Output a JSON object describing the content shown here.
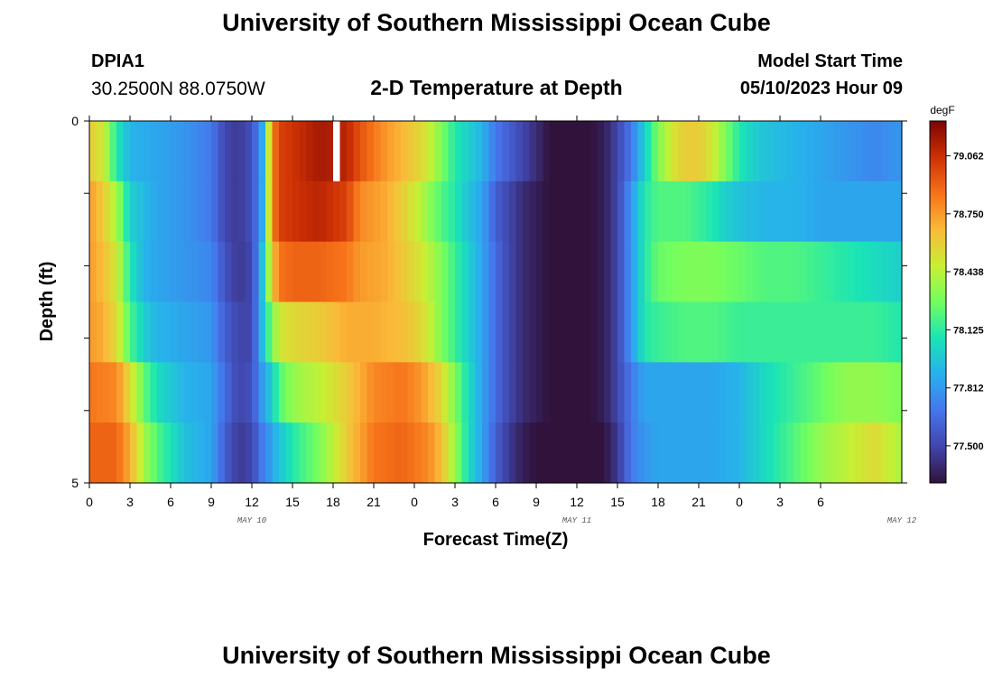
{
  "header": {
    "title": "University of Southern Mississippi Ocean Cube",
    "station_id": "DPIA1",
    "station_coords": "30.2500N  88.0750W",
    "subtitle": "2-D Temperature at Depth",
    "model_start_label": "Model Start Time",
    "model_start_value": "05/10/2023 Hour 09"
  },
  "footer": {
    "title": "University of Southern Mississippi Ocean Cube"
  },
  "chart_data": {
    "type": "heatmap",
    "title": "2-D Temperature at Depth",
    "xlabel": "Forecast Time(Z)",
    "ylabel": "Depth (ft)",
    "colorbar_unit": "degF",
    "x_tick_labels": [
      "0",
      "3",
      "6",
      "9",
      "12",
      "15",
      "18",
      "21",
      "0",
      "3",
      "6",
      "9",
      "12",
      "15",
      "18",
      "21",
      "0",
      "3",
      "6"
    ],
    "y_range": [
      0,
      5
    ],
    "y_tick_labels": [
      "0",
      "5"
    ],
    "date_labels": [
      {
        "label": "MAY 10",
        "hour_index": 12
      },
      {
        "label": "MAY 11",
        "hour_index": 36
      },
      {
        "label": "MAY 12",
        "hour_index": 60
      }
    ],
    "colorbar_ticks": [
      "79.062",
      "78.750",
      "78.438",
      "78.125",
      "77.812",
      "77.500"
    ],
    "color_range": [
      77.3,
      79.25
    ],
    "missing_cell": {
      "row": 0,
      "hour": 18
    },
    "depth_rows": [
      {
        "anchors": [
          [
            0,
            78.6
          ],
          [
            1,
            78.5
          ],
          [
            2,
            78.1
          ],
          [
            3,
            77.9
          ],
          [
            5,
            77.85
          ],
          [
            7,
            77.8
          ],
          [
            9,
            77.7
          ],
          [
            10,
            77.5
          ],
          [
            11,
            77.45
          ],
          [
            12,
            77.55
          ],
          [
            12.7,
            77.8
          ],
          [
            13.5,
            78.8
          ],
          [
            14,
            79.0
          ],
          [
            15,
            79.05
          ],
          [
            17,
            79.15
          ],
          [
            19,
            79.1
          ],
          [
            20,
            78.95
          ],
          [
            22,
            78.75
          ],
          [
            24,
            78.6
          ],
          [
            25,
            78.5
          ],
          [
            26,
            78.3
          ],
          [
            27,
            78.1
          ],
          [
            28,
            78.0
          ],
          [
            29,
            77.9
          ],
          [
            30,
            77.7
          ],
          [
            32,
            77.5
          ],
          [
            33,
            77.4
          ],
          [
            34,
            77.3
          ],
          [
            36,
            77.25
          ],
          [
            38,
            77.35
          ],
          [
            39,
            77.5
          ],
          [
            40,
            77.7
          ],
          [
            41,
            78.0
          ],
          [
            42,
            78.3
          ],
          [
            43,
            78.5
          ],
          [
            44,
            78.6
          ],
          [
            45,
            78.6
          ],
          [
            46,
            78.5
          ],
          [
            47,
            78.3
          ],
          [
            48,
            78.1
          ],
          [
            49,
            78.0
          ],
          [
            50,
            77.95
          ],
          [
            52,
            77.9
          ],
          [
            54,
            77.85
          ],
          [
            56,
            77.8
          ],
          [
            58,
            77.75
          ],
          [
            60,
            77.8
          ]
        ]
      },
      {
        "anchors": [
          [
            0,
            78.75
          ],
          [
            1,
            78.6
          ],
          [
            2,
            78.4
          ],
          [
            3,
            78.0
          ],
          [
            5,
            77.85
          ],
          [
            7,
            77.8
          ],
          [
            9,
            77.7
          ],
          [
            10,
            77.5
          ],
          [
            11,
            77.45
          ],
          [
            12,
            77.55
          ],
          [
            12.7,
            77.8
          ],
          [
            13.5,
            78.8
          ],
          [
            14,
            79.0
          ],
          [
            15,
            79.05
          ],
          [
            17,
            79.1
          ],
          [
            19,
            79.0
          ],
          [
            20,
            78.8
          ],
          [
            22,
            78.7
          ],
          [
            24,
            78.5
          ],
          [
            25,
            78.35
          ],
          [
            26,
            78.2
          ],
          [
            27,
            78.1
          ],
          [
            28,
            77.95
          ],
          [
            29,
            77.85
          ],
          [
            30,
            77.6
          ],
          [
            31,
            77.5
          ],
          [
            32,
            77.4
          ],
          [
            34,
            77.3
          ],
          [
            36,
            77.25
          ],
          [
            38,
            77.35
          ],
          [
            39,
            77.5
          ],
          [
            40,
            77.8
          ],
          [
            41,
            78.1
          ],
          [
            42,
            78.2
          ],
          [
            44,
            78.2
          ],
          [
            45,
            78.15
          ],
          [
            46,
            78.1
          ],
          [
            47,
            78.0
          ],
          [
            48,
            77.95
          ],
          [
            50,
            77.9
          ],
          [
            52,
            77.9
          ],
          [
            54,
            77.85
          ],
          [
            56,
            77.85
          ],
          [
            58,
            77.85
          ],
          [
            60,
            77.85
          ]
        ]
      },
      {
        "anchors": [
          [
            0,
            78.75
          ],
          [
            1,
            78.65
          ],
          [
            2,
            78.5
          ],
          [
            3,
            78.1
          ],
          [
            4,
            77.9
          ],
          [
            5,
            77.85
          ],
          [
            7,
            77.8
          ],
          [
            9,
            77.75
          ],
          [
            10,
            77.55
          ],
          [
            11,
            77.45
          ],
          [
            12,
            77.5
          ],
          [
            12.7,
            77.9
          ],
          [
            13.5,
            78.6
          ],
          [
            14,
            78.85
          ],
          [
            15,
            78.9
          ],
          [
            17,
            78.9
          ],
          [
            19,
            78.85
          ],
          [
            20,
            78.75
          ],
          [
            22,
            78.7
          ],
          [
            24,
            78.55
          ],
          [
            25,
            78.45
          ],
          [
            26,
            78.3
          ],
          [
            27,
            78.15
          ],
          [
            28,
            78.0
          ],
          [
            29,
            77.85
          ],
          [
            30,
            77.65
          ],
          [
            31,
            77.5
          ],
          [
            32,
            77.4
          ],
          [
            34,
            77.3
          ],
          [
            36,
            77.25
          ],
          [
            38,
            77.35
          ],
          [
            39,
            77.5
          ],
          [
            40,
            77.8
          ],
          [
            41,
            78.1
          ],
          [
            42,
            78.25
          ],
          [
            44,
            78.3
          ],
          [
            46,
            78.3
          ],
          [
            48,
            78.25
          ],
          [
            50,
            78.2
          ],
          [
            52,
            78.2
          ],
          [
            54,
            78.15
          ],
          [
            56,
            78.1
          ],
          [
            58,
            78.05
          ],
          [
            60,
            78.0
          ]
        ]
      },
      {
        "anchors": [
          [
            0,
            78.75
          ],
          [
            1,
            78.7
          ],
          [
            2,
            78.55
          ],
          [
            3,
            78.2
          ],
          [
            4,
            78.0
          ],
          [
            5,
            77.9
          ],
          [
            7,
            77.85
          ],
          [
            9,
            77.8
          ],
          [
            10,
            77.6
          ],
          [
            11,
            77.5
          ],
          [
            12,
            77.5
          ],
          [
            12.7,
            77.9
          ],
          [
            13.5,
            78.3
          ],
          [
            14,
            78.5
          ],
          [
            15,
            78.55
          ],
          [
            17,
            78.6
          ],
          [
            19,
            78.7
          ],
          [
            21,
            78.7
          ],
          [
            23,
            78.65
          ],
          [
            24,
            78.6
          ],
          [
            25,
            78.5
          ],
          [
            26,
            78.3
          ],
          [
            27,
            78.15
          ],
          [
            28,
            78.0
          ],
          [
            29,
            77.85
          ],
          [
            30,
            77.65
          ],
          [
            31,
            77.5
          ],
          [
            32,
            77.4
          ],
          [
            34,
            77.3
          ],
          [
            36,
            77.25
          ],
          [
            38,
            77.35
          ],
          [
            39,
            77.5
          ],
          [
            40,
            77.8
          ],
          [
            41,
            78.1
          ],
          [
            42,
            78.15
          ],
          [
            44,
            78.2
          ],
          [
            46,
            78.2
          ],
          [
            48,
            78.15
          ],
          [
            50,
            78.15
          ],
          [
            52,
            78.15
          ],
          [
            54,
            78.15
          ],
          [
            56,
            78.15
          ],
          [
            58,
            78.15
          ],
          [
            60,
            78.1
          ]
        ]
      },
      {
        "anchors": [
          [
            0,
            78.85
          ],
          [
            2,
            78.8
          ],
          [
            3,
            78.55
          ],
          [
            4,
            78.25
          ],
          [
            5,
            78.05
          ],
          [
            7,
            77.9
          ],
          [
            9,
            77.85
          ],
          [
            10,
            77.65
          ],
          [
            11,
            77.5
          ],
          [
            12,
            77.55
          ],
          [
            12.7,
            77.8
          ],
          [
            13.5,
            78.0
          ],
          [
            14,
            78.2
          ],
          [
            15,
            78.35
          ],
          [
            17,
            78.45
          ],
          [
            19,
            78.6
          ],
          [
            21,
            78.8
          ],
          [
            23,
            78.85
          ],
          [
            24,
            78.8
          ],
          [
            25,
            78.7
          ],
          [
            26,
            78.55
          ],
          [
            27,
            78.3
          ],
          [
            28,
            78.05
          ],
          [
            29,
            77.85
          ],
          [
            30,
            77.65
          ],
          [
            31,
            77.5
          ],
          [
            32,
            77.4
          ],
          [
            34,
            77.3
          ],
          [
            36,
            77.25
          ],
          [
            38,
            77.35
          ],
          [
            39,
            77.5
          ],
          [
            40,
            77.7
          ],
          [
            41,
            77.85
          ],
          [
            42,
            77.85
          ],
          [
            44,
            77.85
          ],
          [
            46,
            77.85
          ],
          [
            48,
            77.9
          ],
          [
            50,
            78.05
          ],
          [
            52,
            78.15
          ],
          [
            54,
            78.25
          ],
          [
            56,
            78.35
          ],
          [
            58,
            78.35
          ],
          [
            60,
            78.3
          ]
        ]
      },
      {
        "anchors": [
          [
            0,
            78.9
          ],
          [
            2,
            78.9
          ],
          [
            3,
            78.7
          ],
          [
            4,
            78.4
          ],
          [
            5,
            78.2
          ],
          [
            7,
            77.95
          ],
          [
            9,
            77.85
          ],
          [
            10,
            77.6
          ],
          [
            11,
            77.45
          ],
          [
            12,
            77.5
          ],
          [
            12.7,
            77.7
          ],
          [
            13.5,
            77.85
          ],
          [
            14,
            77.95
          ],
          [
            15,
            78.1
          ],
          [
            17,
            78.3
          ],
          [
            19,
            78.6
          ],
          [
            21,
            78.85
          ],
          [
            23,
            78.9
          ],
          [
            24,
            78.85
          ],
          [
            25,
            78.8
          ],
          [
            26,
            78.65
          ],
          [
            27,
            78.35
          ],
          [
            28,
            78.05
          ],
          [
            29,
            77.85
          ],
          [
            30,
            77.6
          ],
          [
            31,
            77.45
          ],
          [
            32,
            77.35
          ],
          [
            34,
            77.25
          ],
          [
            36,
            77.22
          ],
          [
            38,
            77.3
          ],
          [
            39,
            77.45
          ],
          [
            40,
            77.7
          ],
          [
            41,
            77.8
          ],
          [
            42,
            77.85
          ],
          [
            44,
            77.85
          ],
          [
            46,
            77.85
          ],
          [
            48,
            77.9
          ],
          [
            50,
            78.05
          ],
          [
            52,
            78.2
          ],
          [
            54,
            78.35
          ],
          [
            56,
            78.45
          ],
          [
            58,
            78.55
          ],
          [
            60,
            78.4
          ]
        ]
      }
    ],
    "grid": false,
    "legend": "colorbar-right"
  }
}
